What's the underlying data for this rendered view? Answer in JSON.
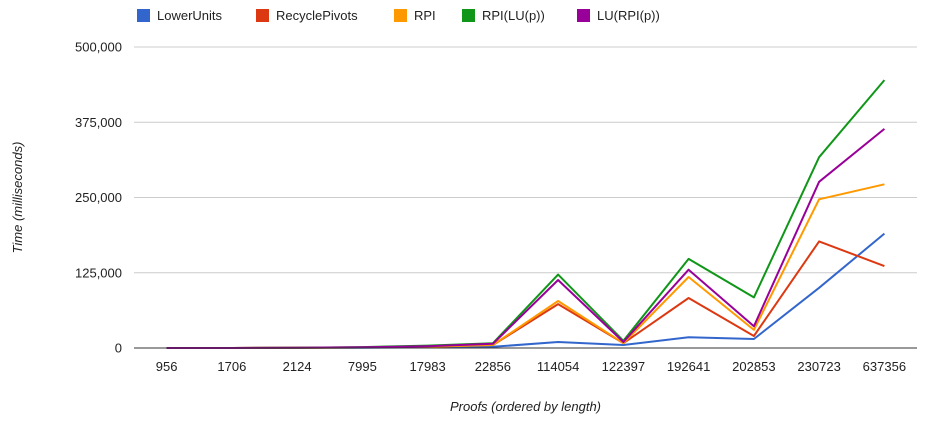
{
  "chart_data": {
    "type": "line",
    "title": "",
    "xlabel": "Proofs (ordered by length)",
    "ylabel": "Time (milliseconds)",
    "categories": [
      "956",
      "1706",
      "2124",
      "7995",
      "17983",
      "22856",
      "114054",
      "122397",
      "192641",
      "202853",
      "230723",
      "637356"
    ],
    "ylim": [
      0,
      500000
    ],
    "yticks": [
      0,
      125000,
      250000,
      375000,
      500000
    ],
    "ytick_labels": [
      "0",
      "125,000",
      "250,000",
      "375,000",
      "500,000"
    ],
    "grid": true,
    "legend_position": "top-left",
    "series": [
      {
        "name": "LowerUnits",
        "color": "#3366cc",
        "values": [
          0,
          0,
          200,
          500,
          1000,
          2000,
          10000,
          5000,
          18000,
          15000,
          100000,
          190000
        ]
      },
      {
        "name": "RecyclePivots",
        "color": "#dc3912",
        "values": [
          0,
          0,
          300,
          800,
          2000,
          5000,
          73000,
          8000,
          83000,
          20000,
          177000,
          136000
        ]
      },
      {
        "name": "RPI",
        "color": "#ff9900",
        "values": [
          0,
          0,
          300,
          800,
          2000,
          5000,
          78000,
          8000,
          118000,
          30000,
          247000,
          272000
        ]
      },
      {
        "name": "RPI(LU(p))",
        "color": "#109618",
        "values": [
          0,
          0,
          400,
          1500,
          4000,
          8000,
          122000,
          12000,
          148000,
          84000,
          317000,
          445000
        ]
      },
      {
        "name": "LU(RPI(p))",
        "color": "#990099",
        "values": [
          0,
          0,
          400,
          1200,
          3000,
          7000,
          113000,
          10000,
          130000,
          36000,
          276000,
          364000
        ]
      }
    ]
  }
}
